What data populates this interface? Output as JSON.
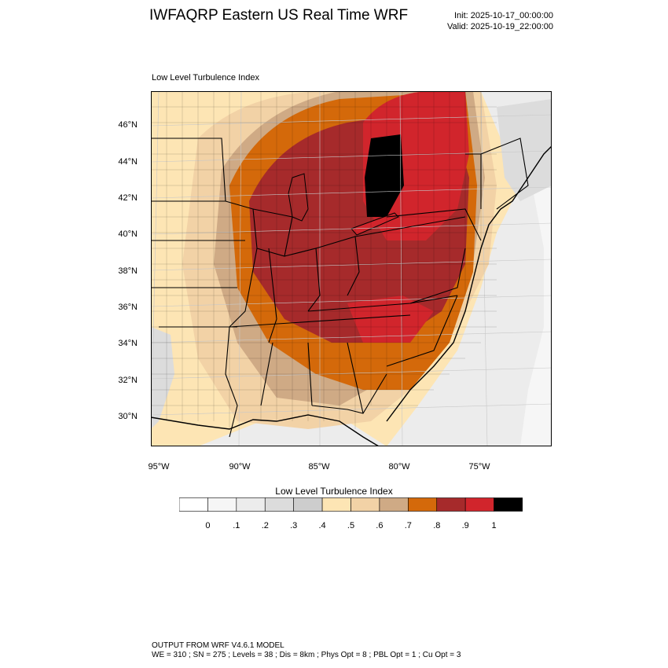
{
  "header": {
    "title": "IWFAQRP Eastern US Real Time WRF",
    "init": "Init: 2025-10-17_00:00:00",
    "valid": "Valid: 2025-10-19_22:00:00"
  },
  "map": {
    "plot_title": "Low Level Turbulence Index",
    "lat_labels": [
      "46°N",
      "44°N",
      "42°N",
      "40°N",
      "38°N",
      "36°N",
      "34°N",
      "32°N",
      "30°N"
    ],
    "lon_labels": [
      "95°W",
      "90°W",
      "85°W",
      "80°W",
      "75°W"
    ],
    "colors": {
      "water": "#dcdcdc",
      "c0": "#ffffff",
      "c1": "#f6f6f6",
      "c2": "#ececec",
      "c3": "#dcdcdc",
      "c4": "#cdcdcd",
      "c5": "#fde5b4",
      "c6": "#f2d2a6",
      "c7": "#cfaa85",
      "c8": "#d4690a",
      "c9": "#a62a2b",
      "c10": "#d1252c",
      "c11": "#000000"
    }
  },
  "colorbar": {
    "title": "Low Level Turbulence Index",
    "labels": [
      "0",
      ".1",
      ".2",
      ".3",
      ".4",
      ".5",
      ".6",
      ".7",
      ".8",
      ".9",
      "1"
    ],
    "colors": [
      "#ffffff",
      "#f6f6f6",
      "#ececec",
      "#dcdcdc",
      "#cdcdcd",
      "#fde5b4",
      "#f2d2a6",
      "#cfaa85",
      "#d4690a",
      "#a62a2b",
      "#d1252c",
      "#000000"
    ]
  },
  "footer": {
    "line1": "OUTPUT FROM WRF V4.6.1 MODEL",
    "line2": "WE = 310 ; SN = 275 ; Levels = 38 ; Dis = 8km ; Phys Opt = 8 ; PBL Opt = 1 ; Cu Opt = 3"
  }
}
